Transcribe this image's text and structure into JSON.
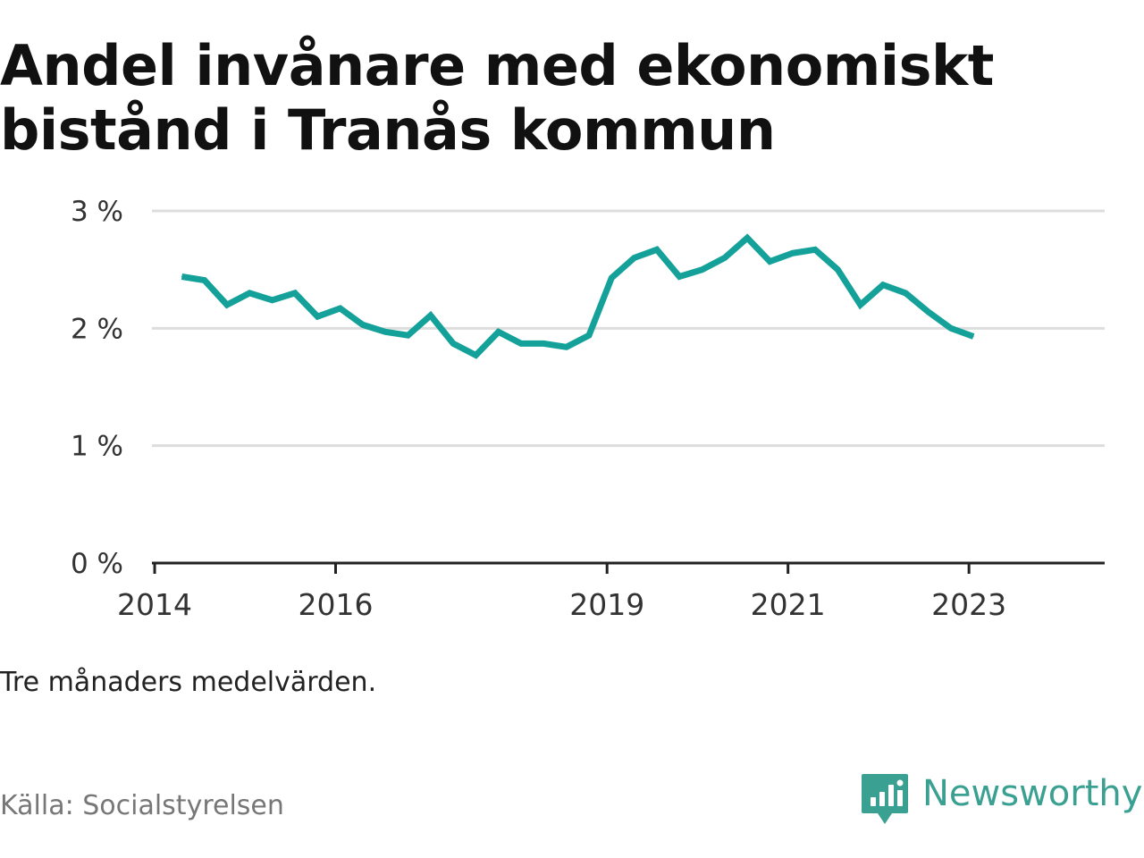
{
  "title": "Andel invånare med ekonomiskt bistånd i Tranås kommun",
  "note": "Tre månaders medelvärden.",
  "source": "Källa: Socialstyrelsen",
  "brand": {
    "name": "Newsworthy",
    "icon": "newsworthy-logo-icon",
    "color": "#3aa092"
  },
  "colors": {
    "line": "#14a19a",
    "grid": "#dddddd",
    "axis": "#222222",
    "text": "#333333"
  },
  "chart_data": {
    "type": "line",
    "title": "Andel invånare med ekonomiskt bistånd i Tranås kommun",
    "xlabel": "",
    "ylabel": "",
    "x_ticks": [
      {
        "label": "2014",
        "value": 2014.0
      },
      {
        "label": "2016",
        "value": 2016.0
      },
      {
        "label": "2019",
        "value": 2019.0
      },
      {
        "label": "2021",
        "value": 2021.0
      },
      {
        "label": "2023",
        "value": 2023.0
      }
    ],
    "y_ticks": [
      {
        "label": "0 %",
        "value": 0
      },
      {
        "label": "1 %",
        "value": 1
      },
      {
        "label": "2 %",
        "value": 2
      },
      {
        "label": "3 %",
        "value": 3
      }
    ],
    "xlim": [
      2013.97,
      2024.5
    ],
    "ylim": [
      0,
      3
    ],
    "grid": true,
    "legend": "none",
    "series": [
      {
        "x": [
          2014.3,
          2014.55,
          2014.8,
          2015.05,
          2015.3,
          2015.55,
          2015.8,
          2016.05,
          2016.3,
          2016.55,
          2016.8,
          2017.05,
          2017.3,
          2017.55,
          2017.8,
          2018.05,
          2018.3,
          2018.55,
          2018.8,
          2019.05,
          2019.3,
          2019.55,
          2019.8,
          2020.05,
          2020.3,
          2020.55,
          2020.8,
          2021.05,
          2021.3,
          2021.55,
          2021.8,
          2022.05,
          2022.3,
          2022.55,
          2022.8,
          2023.05
        ],
        "values": [
          2.44,
          2.41,
          2.2,
          2.3,
          2.24,
          2.3,
          2.1,
          2.17,
          2.03,
          1.97,
          1.94,
          2.11,
          1.87,
          1.77,
          1.97,
          1.87,
          1.87,
          1.84,
          1.94,
          2.43,
          2.6,
          2.67,
          2.44,
          2.5,
          2.6,
          2.77,
          2.57,
          2.64,
          2.67,
          2.5,
          2.2,
          2.37,
          2.3,
          2.14,
          2.0,
          1.93
        ]
      }
    ]
  }
}
